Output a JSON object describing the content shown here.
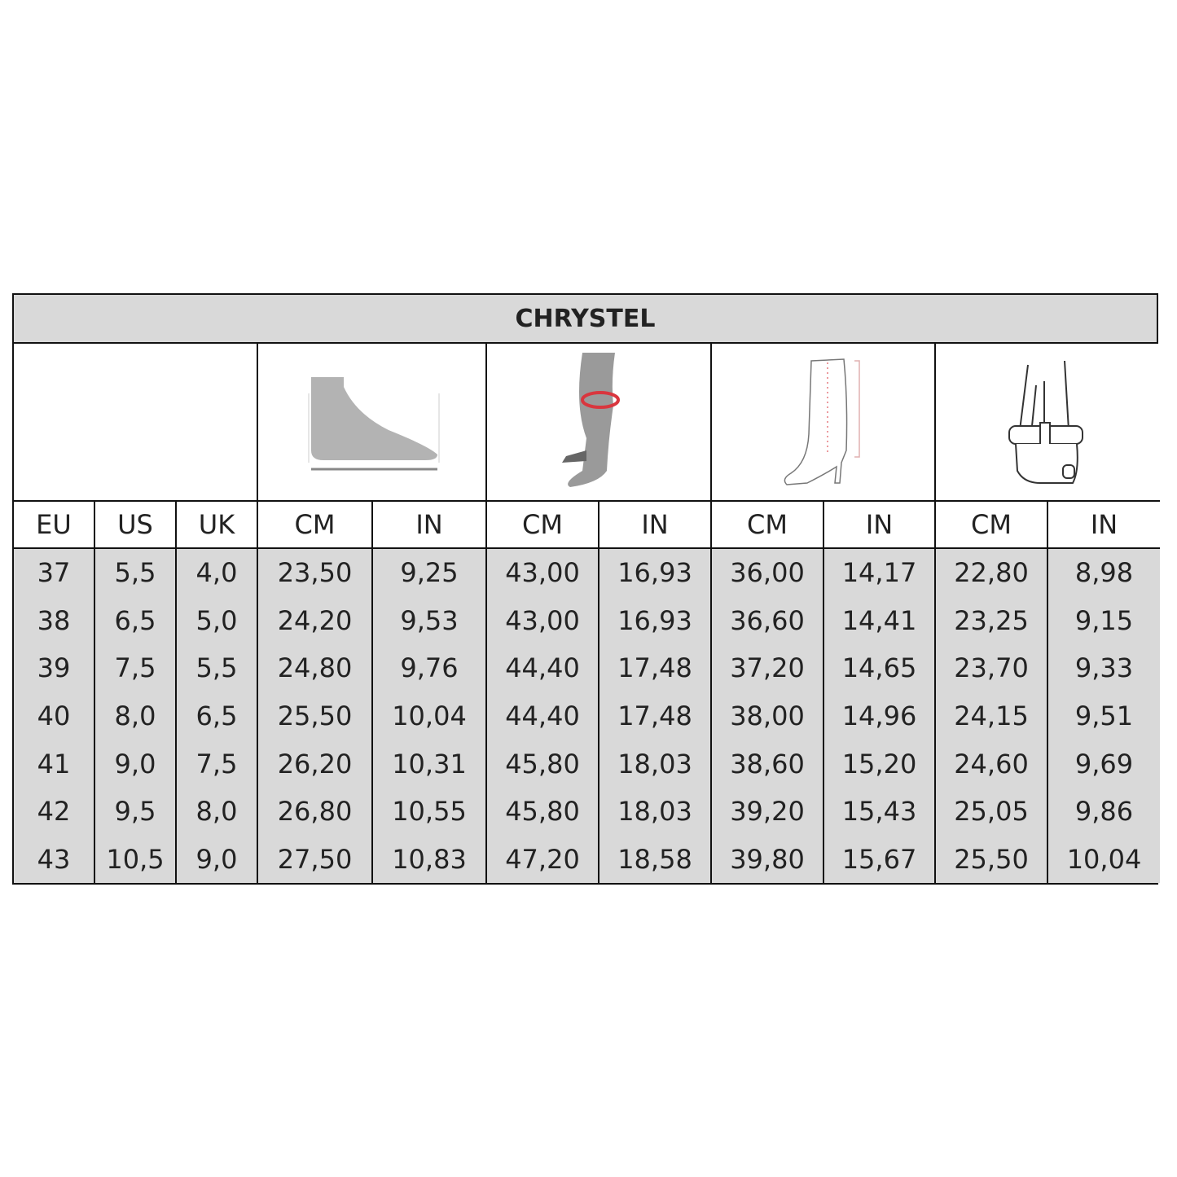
{
  "title": "CHRYSTEL",
  "icons": [
    "foot-length-icon",
    "calf-circumference-icon",
    "boot-shaft-height-icon",
    "foot-width-icon"
  ],
  "headers": [
    "EU",
    "US",
    "UK",
    "CM",
    "IN",
    "CM",
    "IN",
    "CM",
    "IN",
    "CM",
    "IN"
  ],
  "rows": [
    [
      "37",
      "5,5",
      "4,0",
      "23,50",
      "9,25",
      "43,00",
      "16,93",
      "36,00",
      "14,17",
      "22,80",
      "8,98"
    ],
    [
      "38",
      "6,5",
      "5,0",
      "24,20",
      "9,53",
      "43,00",
      "16,93",
      "36,60",
      "14,41",
      "23,25",
      "9,15"
    ],
    [
      "39",
      "7,5",
      "5,5",
      "24,80",
      "9,76",
      "44,40",
      "17,48",
      "37,20",
      "14,65",
      "23,70",
      "9,33"
    ],
    [
      "40",
      "8,0",
      "6,5",
      "25,50",
      "10,04",
      "44,40",
      "17,48",
      "38,00",
      "14,96",
      "24,15",
      "9,51"
    ],
    [
      "41",
      "9,0",
      "7,5",
      "26,20",
      "10,31",
      "45,80",
      "18,03",
      "38,60",
      "15,20",
      "24,60",
      "9,69"
    ],
    [
      "42",
      "9,5",
      "8,0",
      "26,80",
      "10,55",
      "45,80",
      "18,03",
      "39,20",
      "15,43",
      "25,05",
      "9,86"
    ],
    [
      "43",
      "10,5",
      "9,0",
      "27,50",
      "10,83",
      "47,20",
      "18,58",
      "39,80",
      "15,67",
      "25,50",
      "10,04"
    ]
  ],
  "colors": {
    "header_bg": "#d9d9d9",
    "data_bg": "#d9d9d9",
    "border": "#111111",
    "measure_red": "#d9363e"
  }
}
